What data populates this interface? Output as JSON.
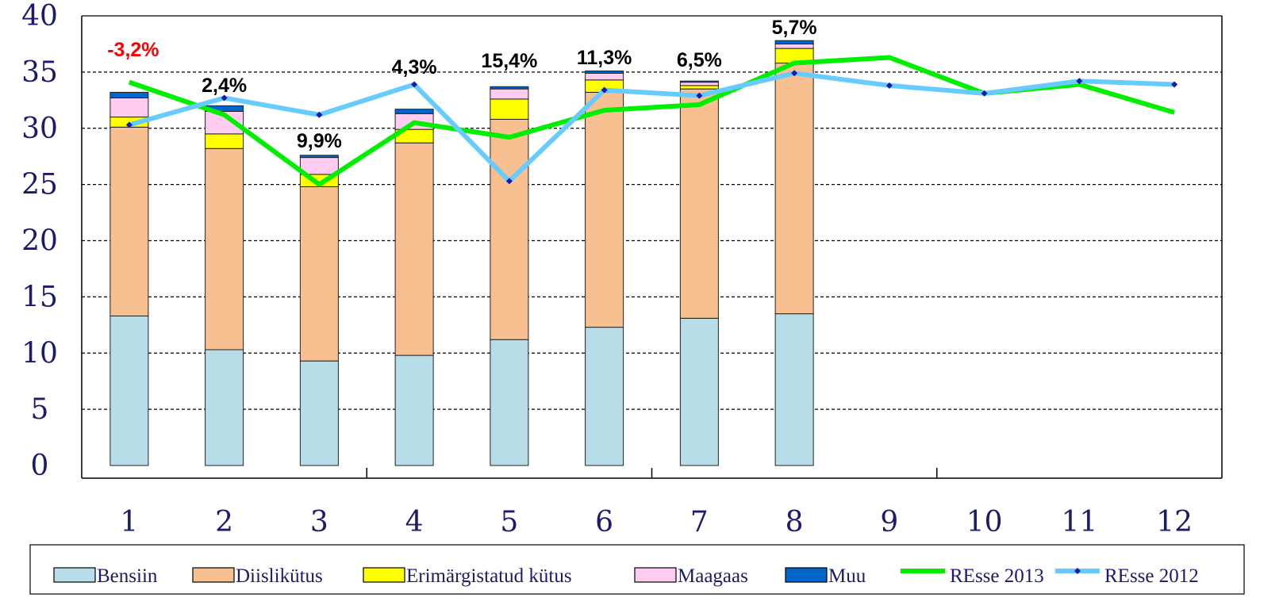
{
  "chart_data": {
    "type": "stacked_bar_line",
    "categories": [
      "1",
      "2",
      "3",
      "4",
      "5",
      "6",
      "7",
      "8",
      "9",
      "10",
      "11",
      "12"
    ],
    "ylim": [
      0,
      40
    ],
    "yticks": [
      0,
      5,
      10,
      15,
      20,
      25,
      30,
      35,
      40
    ],
    "grid": true,
    "series": [
      {
        "name": "Bensiin",
        "color": "#b7dde8",
        "kind": "bar",
        "values": [
          13.3,
          10.3,
          9.3,
          9.8,
          11.2,
          12.3,
          13.1,
          13.5,
          null,
          null,
          null,
          null
        ]
      },
      {
        "name": "Diislikütus",
        "color": "#f8c090",
        "kind": "bar",
        "values": [
          16.8,
          17.9,
          15.5,
          18.9,
          19.6,
          20.9,
          20.4,
          22.3,
          null,
          null,
          null,
          null
        ]
      },
      {
        "name": "Erimärgistatud kütus",
        "color": "#ffff00",
        "kind": "bar",
        "values": [
          0.9,
          1.3,
          1.1,
          1.2,
          1.8,
          1.1,
          0.3,
          1.3,
          null,
          null,
          null,
          null
        ]
      },
      {
        "name": "Maagaas",
        "color": "#ffccf0",
        "kind": "bar",
        "values": [
          1.7,
          2.0,
          1.5,
          1.4,
          0.9,
          0.6,
          0.3,
          0.4,
          null,
          null,
          null,
          null
        ]
      },
      {
        "name": "Muu",
        "color": "#0066cc",
        "kind": "bar",
        "values": [
          0.5,
          0.5,
          0.2,
          0.4,
          0.2,
          0.2,
          0.1,
          0.3,
          null,
          null,
          null,
          null
        ]
      },
      {
        "name": "REsse 2013",
        "color": "#00ee00",
        "kind": "line",
        "values": [
          34.1,
          31.2,
          25.0,
          30.5,
          29.2,
          31.6,
          32.1,
          35.8,
          36.3,
          33.1,
          33.9,
          31.4
        ]
      },
      {
        "name": "REsse 2012",
        "color": "#66ccff",
        "kind": "line",
        "marker_color": "#1a1aaa",
        "values": [
          30.3,
          32.7,
          31.2,
          33.9,
          25.3,
          33.4,
          32.9,
          34.9,
          33.8,
          33.1,
          34.2,
          33.9
        ]
      }
    ],
    "annotations": [
      {
        "text": "-3,2%",
        "color": "#ff0000"
      },
      {
        "text": "2,4%",
        "color": "#000000"
      },
      {
        "text": "9,9%",
        "color": "#000000"
      },
      {
        "text": "4,3%",
        "color": "#000000"
      },
      {
        "text": "15,4%",
        "color": "#000000"
      },
      {
        "text": "11,3%",
        "color": "#000000"
      },
      {
        "text": "6,5%",
        "color": "#000000"
      },
      {
        "text": "5,7%",
        "color": "#000000"
      }
    ]
  }
}
